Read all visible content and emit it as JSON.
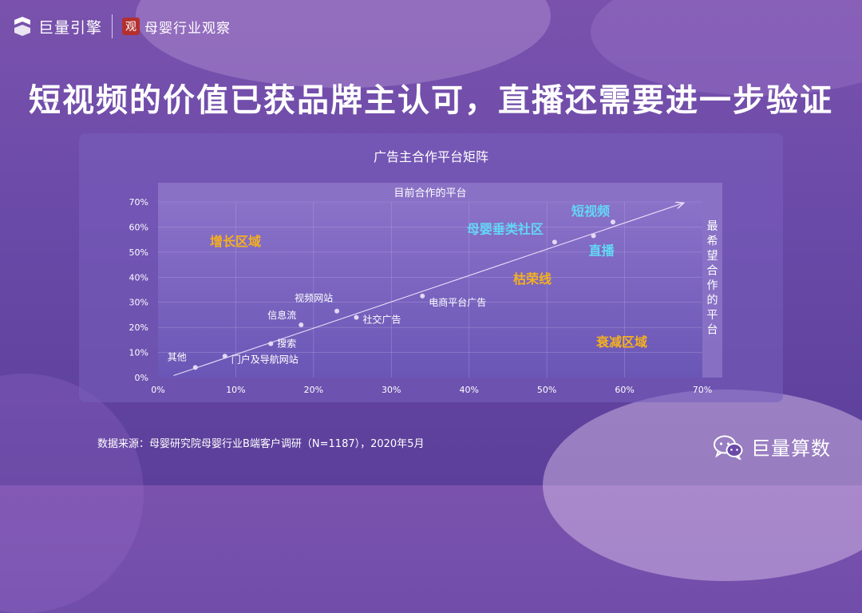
{
  "header": {
    "brand_primary": "巨量引擎",
    "brand_secondary": "母婴行业观察",
    "seal_char": "观"
  },
  "headline": "短视频的价值已获品牌主认可，直播还需要进一步验证",
  "panel": {
    "title": "广告主合作平台矩阵"
  },
  "colors": {
    "background": "#6a4aa8",
    "panel": "#7b5fbc",
    "zone_label": "#f5b01e",
    "highlight_label": "#63d7f5",
    "point": "#e2d9f5"
  },
  "chart_data": {
    "type": "scatter",
    "xlabel": "目前合作的平台",
    "ylabel": "最希望合作的平台",
    "xlim": [
      0,
      70
    ],
    "ylim": [
      0,
      70
    ],
    "x_ticks": [
      "0%",
      "10%",
      "20%",
      "30%",
      "40%",
      "50%",
      "60%",
      "70%"
    ],
    "y_ticks": [
      "0%",
      "10%",
      "20%",
      "30%",
      "40%",
      "50%",
      "60%",
      "70%"
    ],
    "trend_line_label": "枯荣线",
    "zones": [
      "增长区域",
      "衰减区域"
    ],
    "points": [
      {
        "name": "其他",
        "x": 4.8,
        "y": 4,
        "highlight": false
      },
      {
        "name": "门户及导航网站",
        "x": 8.6,
        "y": 8.5,
        "highlight": false
      },
      {
        "name": "搜索",
        "x": 14.5,
        "y": 13.5,
        "highlight": false
      },
      {
        "name": "信息流",
        "x": 18.4,
        "y": 21,
        "highlight": false
      },
      {
        "name": "视频网站",
        "x": 23,
        "y": 26.5,
        "highlight": false
      },
      {
        "name": "社交广告",
        "x": 25.5,
        "y": 24,
        "highlight": false
      },
      {
        "name": "电商平台广告",
        "x": 34,
        "y": 32.5,
        "highlight": false
      },
      {
        "name": "母婴垂类社区",
        "x": 51,
        "y": 54,
        "highlight": true
      },
      {
        "name": "直播",
        "x": 56,
        "y": 56.5,
        "highlight": true
      },
      {
        "name": "短视频",
        "x": 58.5,
        "y": 62,
        "highlight": true
      }
    ]
  },
  "footer": {
    "source": "数据来源：母婴研究院母婴行业B端客户调研（N=1187），2020年5月"
  },
  "wechat": {
    "account": "巨量算数"
  }
}
